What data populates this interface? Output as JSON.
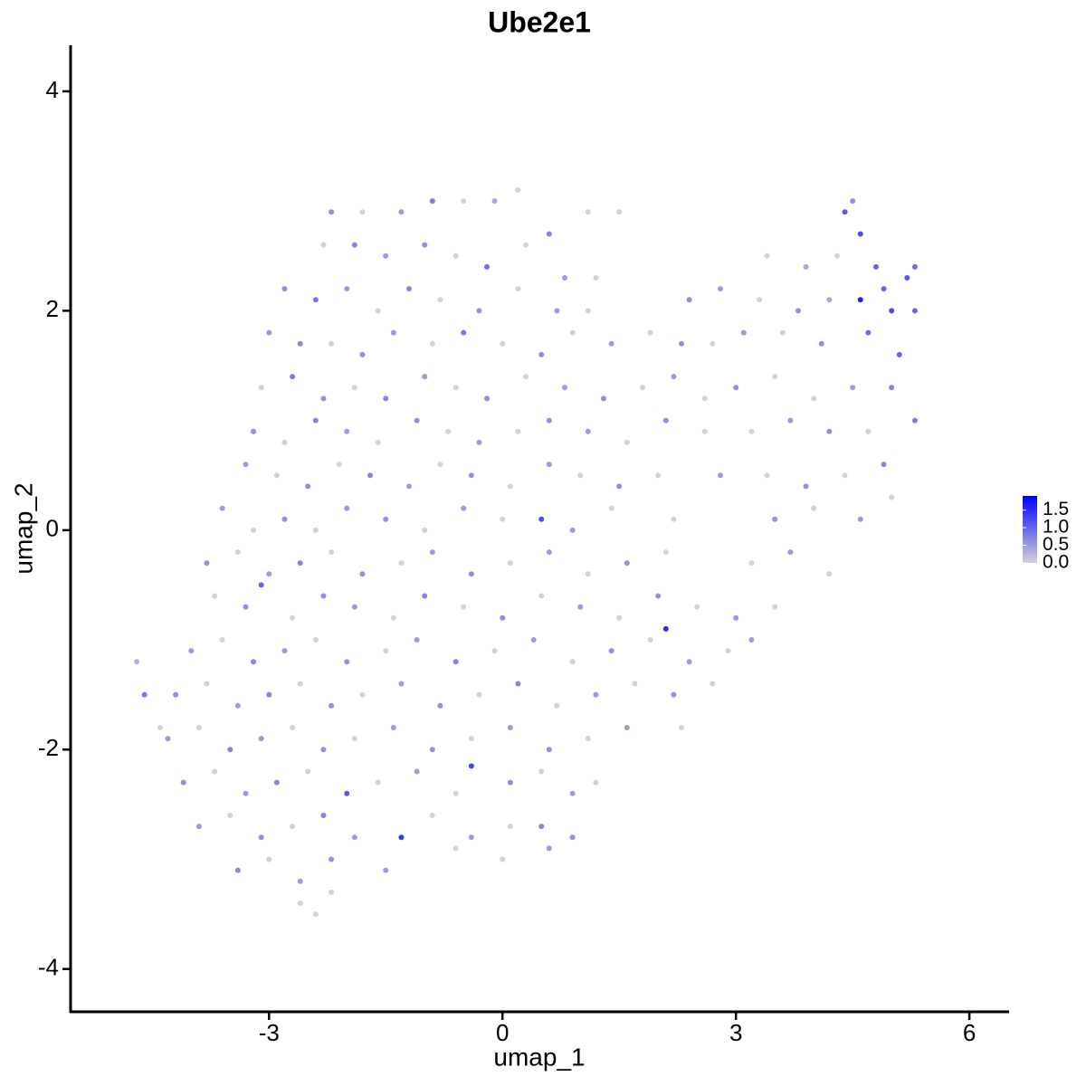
{
  "chart_data": {
    "type": "scatter",
    "title": "Ube2e1",
    "x_label": "umap_1",
    "y_label": "umap_2",
    "xlim": [
      -5.55,
      6.51
    ],
    "ylim": [
      -4.39,
      4.42
    ],
    "xticks": [
      -3,
      0,
      3,
      6
    ],
    "yticks": [
      -4,
      -2,
      0,
      2,
      4
    ],
    "x": [
      -2.2,
      -1.8,
      -1.3,
      -0.9,
      -0.5,
      -0.1,
      0.2,
      0.6,
      1.1,
      1.5,
      4.4,
      4.6,
      -2.3,
      -1.9,
      -1.5,
      -1.0,
      -0.6,
      -0.2,
      0.3,
      0.8,
      1.2,
      3.4,
      3.9,
      4.3,
      4.8,
      5.2,
      -2.8,
      -2.4,
      -2.0,
      -1.6,
      -1.2,
      -0.8,
      -0.3,
      0.2,
      0.7,
      1.1,
      2.4,
      2.8,
      3.3,
      3.8,
      4.2,
      5.0,
      5.3,
      -3.0,
      -2.6,
      -2.2,
      -1.8,
      -1.4,
      -0.9,
      -0.5,
      0,
      0.5,
      0.9,
      1.4,
      1.9,
      2.3,
      2.7,
      3.1,
      3.6,
      4.1,
      4.7,
      5.1,
      -3.1,
      -2.7,
      -2.3,
      -1.9,
      -1.5,
      -1.0,
      -0.6,
      -0.2,
      0.3,
      0.8,
      1.3,
      1.8,
      2.2,
      2.6,
      3.0,
      3.5,
      4.0,
      4.5,
      5.0,
      -3.2,
      -2.8,
      -2.4,
      -2.0,
      -1.6,
      -1.1,
      -0.7,
      -0.3,
      0.2,
      0.6,
      1.1,
      1.6,
      2.1,
      2.6,
      3.2,
      3.7,
      4.2,
      4.7,
      5.3,
      -3.3,
      -2.9,
      -2.5,
      -2.1,
      -1.7,
      -1.2,
      -0.8,
      -0.4,
      0.1,
      0.6,
      1.0,
      1.5,
      2.0,
      2.8,
      3.4,
      3.9,
      4.4,
      4.9,
      -3.6,
      -3.2,
      -2.8,
      -2.4,
      -2.0,
      -1.5,
      -1.0,
      -0.5,
      0.0,
      0.5,
      0.9,
      1.4,
      2.2,
      3.5,
      4.0,
      4.6,
      5.0,
      -3.8,
      -3.4,
      -3.0,
      -2.6,
      -2.2,
      -1.8,
      -1.3,
      -0.9,
      -0.4,
      0.1,
      0.6,
      1.1,
      1.6,
      2.1,
      3.2,
      3.7,
      4.2,
      -3.7,
      -3.3,
      -3.1,
      -2.7,
      -2.3,
      -1.9,
      -1.4,
      -1.0,
      -0.5,
      0.0,
      0.5,
      1.0,
      1.5,
      2.0,
      2.5,
      3.0,
      3.5,
      -4.0,
      -3.6,
      -3.2,
      -2.8,
      -2.4,
      -2.0,
      -1.5,
      -1.1,
      -0.6,
      -0.1,
      0.4,
      0.9,
      1.4,
      1.9,
      2.1,
      2.4,
      2.9,
      3.2,
      -4.2,
      -3.8,
      -3.4,
      -3.0,
      -2.6,
      -2.2,
      -1.8,
      -1.3,
      -0.8,
      -0.3,
      0.2,
      0.7,
      1.2,
      1.7,
      2.2,
      2.7,
      -4.3,
      -3.9,
      -3.5,
      -3.1,
      -2.7,
      -2.3,
      -1.9,
      -1.4,
      -0.9,
      -0.4,
      0.1,
      0.6,
      1.1,
      1.6,
      2.3,
      -4.1,
      -3.7,
      -3.3,
      -2.9,
      -2.5,
      -2.0,
      -1.6,
      -1.1,
      -0.6,
      -0.4,
      0.1,
      0.5,
      0.9,
      1.2,
      -3.9,
      -3.5,
      -3.1,
      -2.7,
      -2.3,
      -1.9,
      -1.3,
      -0.9,
      -0.4,
      0.1,
      0.5,
      0.9,
      -3.4,
      -3.0,
      -2.6,
      -2.2,
      -1.5,
      -0.6,
      0,
      0.6,
      -2.6,
      -2.4,
      -2.2,
      -4.7,
      -4.6,
      -4.4,
      4.6,
      4.5,
      5.3,
      4.9
    ],
    "y": [
      2.9,
      2.9,
      2.9,
      3.0,
      3.0,
      3.0,
      3.1,
      2.7,
      2.9,
      2.9,
      2.9,
      2.7,
      2.6,
      2.6,
      2.5,
      2.6,
      2.5,
      2.4,
      2.6,
      2.3,
      2.3,
      2.5,
      2.4,
      2.5,
      2.4,
      2.3,
      2.2,
      2.1,
      2.2,
      2.0,
      2.2,
      2.1,
      2.0,
      2.2,
      2.0,
      2.0,
      2.1,
      2.2,
      2.1,
      2.0,
      2.1,
      2.0,
      2.0,
      1.8,
      1.7,
      1.7,
      1.6,
      1.8,
      1.7,
      1.8,
      1.7,
      1.6,
      1.8,
      1.7,
      1.8,
      1.7,
      1.7,
      1.8,
      1.8,
      1.7,
      1.8,
      1.6,
      1.3,
      1.4,
      1.2,
      1.3,
      1.2,
      1.4,
      1.3,
      1.2,
      1.4,
      1.3,
      1.2,
      1.3,
      1.4,
      1.2,
      1.3,
      1.4,
      1.2,
      1.3,
      1.3,
      0.9,
      0.8,
      1.0,
      0.9,
      0.8,
      1.0,
      0.9,
      0.8,
      0.9,
      1.0,
      0.9,
      0.8,
      1.0,
      0.9,
      0.9,
      1.0,
      0.9,
      0.9,
      1.0,
      0.6,
      0.5,
      0.4,
      0.6,
      0.5,
      0.4,
      0.6,
      0.5,
      0.4,
      0.6,
      0.5,
      0.4,
      0.5,
      0.5,
      0.5,
      0.4,
      0.5,
      0.6,
      0.2,
      0.0,
      0.1,
      0.0,
      0.2,
      0.1,
      0.0,
      0.2,
      0.1,
      0.1,
      0.0,
      0.2,
      0.1,
      0.1,
      0.2,
      0.1,
      0.3,
      -0.3,
      -0.2,
      -0.4,
      -0.3,
      -0.2,
      -0.4,
      -0.3,
      -0.2,
      -0.4,
      -0.3,
      -0.2,
      -0.4,
      -0.3,
      -0.2,
      -0.3,
      -0.2,
      -0.4,
      -0.6,
      -0.7,
      -0.5,
      -0.8,
      -0.6,
      -0.7,
      -0.8,
      -0.6,
      -0.7,
      -0.8,
      -0.6,
      -0.7,
      -0.8,
      -0.6,
      -0.7,
      -0.8,
      -0.7,
      -1.1,
      -1.0,
      -1.2,
      -1.1,
      -1.0,
      -1.2,
      -1.1,
      -1.0,
      -1.2,
      -1.1,
      -1.0,
      -1.2,
      -1.1,
      -1.0,
      -0.9,
      -1.2,
      -1.1,
      -1.0,
      -1.5,
      -1.4,
      -1.6,
      -1.5,
      -1.4,
      -1.6,
      -1.5,
      -1.4,
      -1.6,
      -1.5,
      -1.4,
      -1.6,
      -1.5,
      -1.4,
      -1.5,
      -1.4,
      -1.9,
      -1.8,
      -2.0,
      -1.9,
      -1.8,
      -2.0,
      -1.9,
      -1.8,
      -2.0,
      -1.9,
      -1.8,
      -2.0,
      -1.9,
      -1.8,
      -1.8,
      -2.3,
      -2.2,
      -2.4,
      -2.3,
      -2.2,
      -2.4,
      -2.3,
      -2.2,
      -2.4,
      -2.15,
      -2.3,
      -2.2,
      -2.4,
      -2.3,
      -2.7,
      -2.6,
      -2.8,
      -2.7,
      -2.6,
      -2.8,
      -2.8,
      -2.6,
      -2.8,
      -2.7,
      -2.7,
      -2.8,
      -3.1,
      -3.0,
      -3.2,
      -3.0,
      -3.1,
      -2.9,
      -3.0,
      -2.9,
      -3.4,
      -3.5,
      -3.3,
      -1.2,
      -1.5,
      -1.8,
      2.1,
      3.0,
      2.4,
      2.2
    ],
    "values": [
      0.6,
      0,
      0.5,
      0.8,
      0,
      0.4,
      0,
      0.7,
      0,
      0,
      1.1,
      1.2,
      0,
      0.7,
      0.5,
      0.6,
      0,
      0.9,
      0,
      0.5,
      0,
      0,
      0.4,
      0,
      1.0,
      1.1,
      0.6,
      0.8,
      0.5,
      0,
      0.7,
      0,
      0.6,
      0,
      0.5,
      0,
      0.6,
      0.5,
      0,
      0.6,
      0.4,
      1.2,
      1.0,
      0.5,
      0.7,
      0,
      0.6,
      0.5,
      0,
      0.8,
      0,
      0.6,
      0,
      0.5,
      0,
      0.6,
      0,
      0.5,
      0,
      0.6,
      0.9,
      1.0,
      0,
      0.8,
      0.6,
      0,
      0.7,
      0.5,
      0,
      0.6,
      0,
      0.5,
      0.6,
      0,
      0.5,
      0,
      0.6,
      0,
      0,
      0.5,
      0.7,
      0.6,
      0,
      0.7,
      0.5,
      0,
      0.6,
      0,
      0.5,
      0,
      0.6,
      0.5,
      0,
      0.6,
      0,
      0,
      0.5,
      0.6,
      0,
      0.8,
      0.5,
      0,
      0.6,
      0,
      0.7,
      0.5,
      0,
      0.6,
      0,
      0.5,
      0,
      0.6,
      0,
      0.5,
      0,
      0.6,
      0,
      0.7,
      0.5,
      0,
      0.6,
      0,
      0.5,
      0.6,
      0,
      0.5,
      0,
      1.2,
      0.5,
      0,
      0,
      0.6,
      0,
      0.5,
      0,
      0.6,
      0,
      0.5,
      0.7,
      0,
      0.6,
      0,
      0.5,
      0.6,
      0,
      0.5,
      0,
      0.6,
      0,
      0,
      0.5,
      0,
      0,
      0.6,
      1.0,
      0,
      0.6,
      0.5,
      0,
      0.7,
      0,
      0.6,
      0,
      0.5,
      0,
      0.6,
      0,
      0.5,
      0,
      0.5,
      0,
      0.7,
      0.5,
      0,
      0.6,
      0,
      0.5,
      0.7,
      0,
      0.5,
      0,
      0.6,
      0,
      1.5,
      0.5,
      0,
      0.5,
      0.6,
      0,
      0.5,
      0.7,
      0,
      0.6,
      0,
      0.5,
      0.6,
      0,
      0.7,
      0,
      0.5,
      0,
      0.6,
      0,
      0.5,
      0,
      0.7,
      0.5,
      0,
      0.6,
      0,
      0.5,
      0.6,
      0,
      0.5,
      0.6,
      0,
      0.5,
      0,
      0.6,
      0,
      0.5,
      0.7,
      0,
      1.1,
      0,
      0.5,
      0,
      1.3,
      0.6,
      0,
      0.5,
      0,
      0.5,
      0,
      0.6,
      0,
      0.7,
      0.5,
      1.4,
      0,
      0.5,
      0,
      0.7,
      0.6,
      0.7,
      0,
      0.5,
      0.6,
      0.5,
      0,
      0,
      0.5,
      0,
      0,
      0,
      0.3,
      0.8,
      0,
      1.6,
      0.6,
      0.9,
      1.0
    ],
    "colorbar": {
      "lim": [
        0,
        1.9
      ],
      "colors": [
        "#d3d3d3",
        "#0000ff"
      ],
      "ticks": [
        {
          "value": 0,
          "label": "0.0"
        },
        0.5,
        {
          "value": 1,
          "label": "1.0"
        },
        1.5
      ]
    }
  }
}
